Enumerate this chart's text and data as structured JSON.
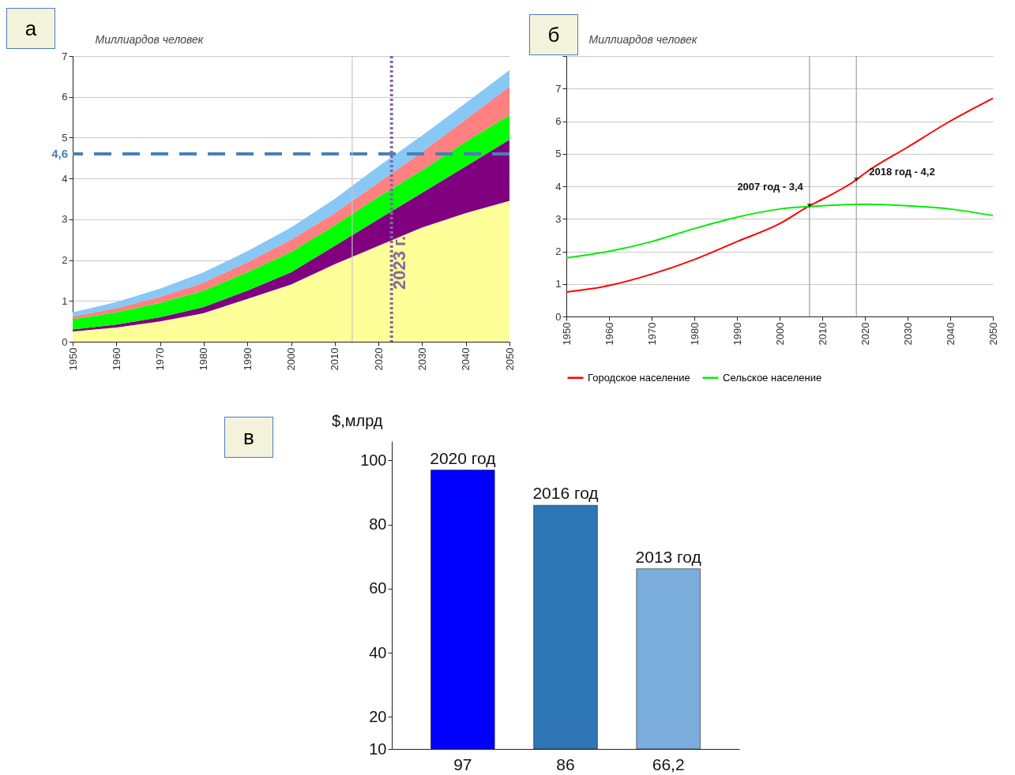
{
  "chart_data": [
    {
      "type": "area",
      "stacked": true,
      "ylabel": "Миллиардов человек",
      "x": [
        1950,
        1960,
        1970,
        1980,
        1990,
        2000,
        2010,
        2020,
        2030,
        2040,
        2050
      ],
      "series": [
        {
          "color": "#ffff99",
          "values": [
            0.25,
            0.35,
            0.5,
            0.7,
            1.05,
            1.4,
            1.9,
            2.35,
            2.8,
            3.15,
            3.45
          ]
        },
        {
          "color": "#800080",
          "values": [
            0.05,
            0.07,
            0.1,
            0.15,
            0.2,
            0.3,
            0.45,
            0.65,
            0.85,
            1.15,
            1.5
          ]
        },
        {
          "color": "#00ff00",
          "values": [
            0.25,
            0.3,
            0.35,
            0.4,
            0.45,
            0.5,
            0.5,
            0.55,
            0.55,
            0.6,
            0.6
          ]
        },
        {
          "color": "#ff8080",
          "values": [
            0.07,
            0.1,
            0.15,
            0.2,
            0.25,
            0.3,
            0.3,
            0.35,
            0.45,
            0.55,
            0.7
          ]
        },
        {
          "color": "#87c8f5",
          "values": [
            0.1,
            0.15,
            0.2,
            0.25,
            0.27,
            0.3,
            0.35,
            0.4,
            0.4,
            0.4,
            0.4
          ]
        }
      ],
      "xlim": [
        1950,
        2050
      ],
      "xticks": [
        1950,
        1960,
        1970,
        1980,
        1990,
        2000,
        2010,
        2020,
        2030,
        2040,
        2050
      ],
      "ylim": [
        0,
        7
      ],
      "yticks": [
        0,
        1,
        2,
        3,
        4,
        5,
        6,
        7
      ],
      "grid": "y",
      "ref_lines": [
        {
          "axis": "y",
          "value": 4.6,
          "label": "4,6",
          "color": "#4a7ebb",
          "line_style": "dashed"
        },
        {
          "axis": "x",
          "value": 2023,
          "label": "2023 г.",
          "color": "#7f6a9e",
          "line_style": "dotted"
        },
        {
          "axis": "x",
          "value": 2014,
          "color": "#c8c8c8",
          "line_style": "solid"
        }
      ],
      "annotations": [
        "а"
      ]
    },
    {
      "type": "line",
      "ylabel": "Миллиардов человек",
      "series": [
        {
          "name": "Городское население",
          "color": "#ff0000",
          "x": [
            1950,
            1960,
            1970,
            1980,
            1990,
            2000,
            2007,
            2010,
            2018,
            2020,
            2030,
            2040,
            2050
          ],
          "values": [
            0.75,
            0.95,
            1.3,
            1.75,
            2.3,
            2.85,
            3.4,
            3.6,
            4.2,
            4.4,
            5.2,
            6.0,
            6.7
          ]
        },
        {
          "name": "Сельское население",
          "color": "#00ee00",
          "x": [
            1950,
            1960,
            1970,
            1980,
            1990,
            2000,
            2010,
            2020,
            2030,
            2040,
            2050
          ],
          "values": [
            1.8,
            2.0,
            2.3,
            2.7,
            3.05,
            3.3,
            3.4,
            3.45,
            3.4,
            3.3,
            3.1
          ]
        }
      ],
      "xlim": [
        1950,
        2050
      ],
      "xticks": [
        1950,
        1960,
        1970,
        1980,
        1990,
        2000,
        2010,
        2020,
        2030,
        2040,
        2050
      ],
      "ylim": [
        0,
        8
      ],
      "yticks": [
        0,
        1,
        2,
        3,
        4,
        5,
        6,
        7,
        {
          "value": 8,
          "label": null
        }
      ],
      "grid": "y",
      "legend": "bottom",
      "ref_lines": [
        {
          "axis": "x",
          "value": 2007,
          "color": "#a0a0a0",
          "line_style": "solid"
        },
        {
          "axis": "x",
          "value": 2018,
          "color": "#a0a0a0",
          "line_style": "solid"
        }
      ],
      "annotations": [
        "б",
        {
          "text": "2007 год - 3,4",
          "x": 2007,
          "y": 3.4
        },
        {
          "text": "2018 год - 4,2",
          "x": 2018,
          "y": 4.2
        }
      ]
    },
    {
      "type": "bar",
      "ylabel": "$,млрд",
      "categories": [
        "2020 год",
        "2016 год",
        "2013 год"
      ],
      "values": [
        97,
        86,
        66.2
      ],
      "colors": [
        "#0000ff",
        "#2e75b6",
        "#7aaddc"
      ],
      "value_labels": [
        "97",
        "86",
        "66,2"
      ],
      "ylim": [
        10,
        106
      ],
      "yticks": [
        10,
        20,
        40,
        60,
        80,
        100
      ],
      "annotations": [
        "в"
      ]
    }
  ]
}
